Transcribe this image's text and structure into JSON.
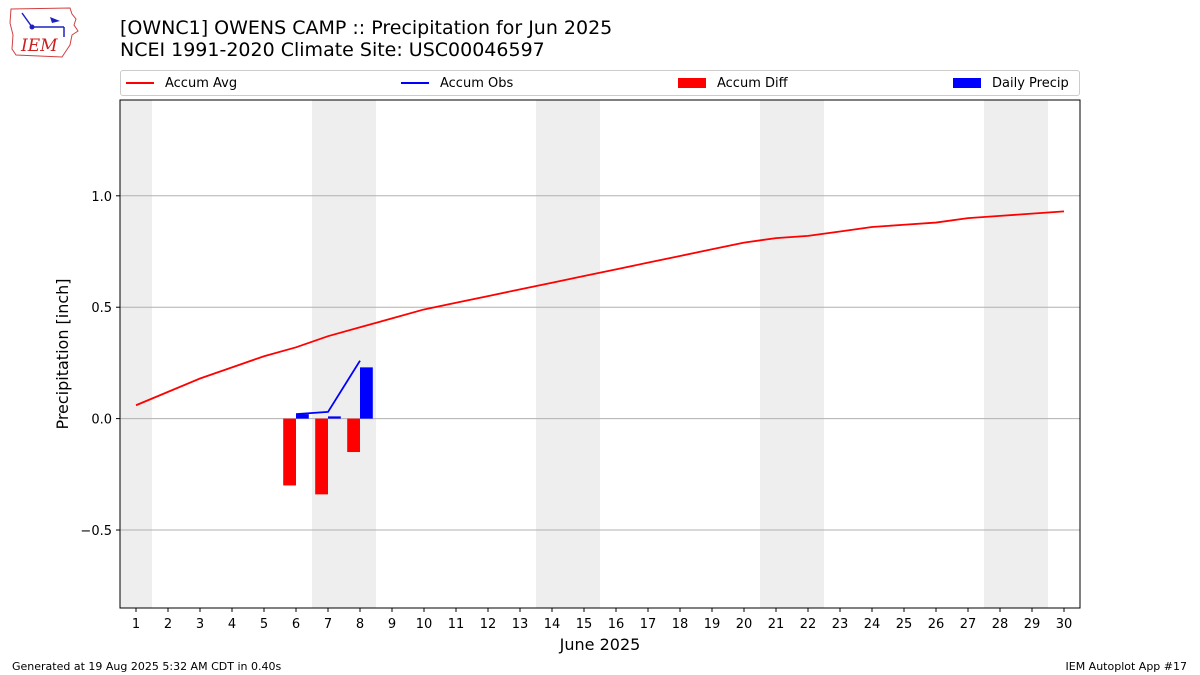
{
  "header": {
    "title_line1": "[OWNC1] OWENS CAMP :: Precipitation for Jun 2025",
    "title_line2": "NCEI 1991-2020 Climate Site: USC00046597",
    "logo_text": "IEM"
  },
  "footer": {
    "generated": "Generated at 19 Aug 2025 5:32 AM CDT in 0.40s",
    "app": "IEM Autoplot App #17"
  },
  "colors": {
    "accum_avg": "#ff0000",
    "accum_obs": "#0000ff",
    "accum_diff": "#ff0000",
    "daily_precip": "#0000ff",
    "weekend_shade": "#eeeeee",
    "grid": "#b0b0b0"
  },
  "chart_data": {
    "type": "bar",
    "title": "[OWNC1] OWENS CAMP :: Precipitation for Jun 2025",
    "subtitle": "NCEI 1991-2020 Climate Site: USC00046597",
    "xlabel": "June 2025",
    "ylabel": "Precipitation [inch]",
    "x": [
      1,
      2,
      3,
      4,
      5,
      6,
      7,
      8,
      9,
      10,
      11,
      12,
      13,
      14,
      15,
      16,
      17,
      18,
      19,
      20,
      21,
      22,
      23,
      24,
      25,
      26,
      27,
      28,
      29,
      30
    ],
    "xlim": [
      0.5,
      30.5
    ],
    "ylim": [
      -0.85,
      1.43
    ],
    "yticks": [
      -0.5,
      0.0,
      0.5,
      1.0
    ],
    "ytick_labels": [
      "−0.5",
      "0.0",
      "0.5",
      "1.0"
    ],
    "grid": "horizontal",
    "legend_position": "top",
    "legend": [
      "Accum Avg",
      "Accum Obs",
      "Accum Diff",
      "Daily Precip"
    ],
    "weekend_days": [
      1,
      7,
      8,
      14,
      15,
      21,
      22,
      28,
      29
    ],
    "series": [
      {
        "name": "Accum Avg",
        "kind": "line",
        "x": [
          1,
          2,
          3,
          4,
          5,
          6,
          7,
          8,
          9,
          10,
          11,
          12,
          13,
          14,
          15,
          16,
          17,
          18,
          19,
          20,
          21,
          22,
          23,
          24,
          25,
          26,
          27,
          28,
          29,
          30
        ],
        "values": [
          0.06,
          0.12,
          0.18,
          0.23,
          0.28,
          0.32,
          0.37,
          0.41,
          0.45,
          0.49,
          0.52,
          0.55,
          0.58,
          0.61,
          0.64,
          0.67,
          0.7,
          0.73,
          0.76,
          0.79,
          0.81,
          0.82,
          0.84,
          0.86,
          0.87,
          0.88,
          0.9,
          0.91,
          0.92,
          0.93
        ]
      },
      {
        "name": "Accum Obs",
        "kind": "line",
        "x": [
          6,
          7,
          8
        ],
        "values": [
          0.02,
          0.03,
          0.26
        ]
      },
      {
        "name": "Accum Diff",
        "kind": "bar",
        "x": [
          6,
          7,
          8
        ],
        "values": [
          -0.3,
          -0.34,
          -0.15
        ]
      },
      {
        "name": "Daily Precip",
        "kind": "bar",
        "x": [
          6,
          7,
          8
        ],
        "values": [
          0.02,
          0.01,
          0.23
        ]
      }
    ]
  }
}
